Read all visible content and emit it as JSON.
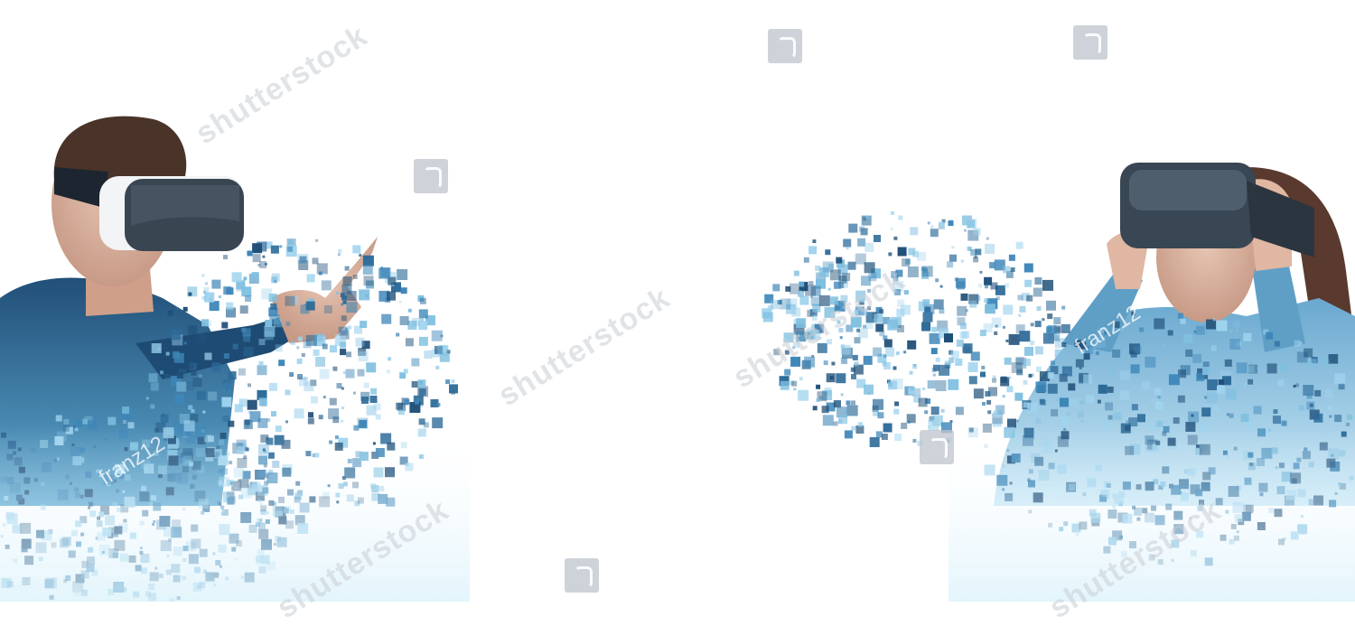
{
  "image": {
    "subject": "Man and woman wearing virtual reality headsets dissolving into blue pixels",
    "colors": {
      "background": "#ffffff",
      "pixel_dark": "#1f4f78",
      "pixel_mid": "#3d86b8",
      "pixel_light": "#9fd3ee",
      "headset_white": "#f2f4f6",
      "headset_dark": "#3a4552"
    }
  },
  "watermarks": {
    "brand_text": "shutterstock",
    "author_text": "franz12"
  }
}
